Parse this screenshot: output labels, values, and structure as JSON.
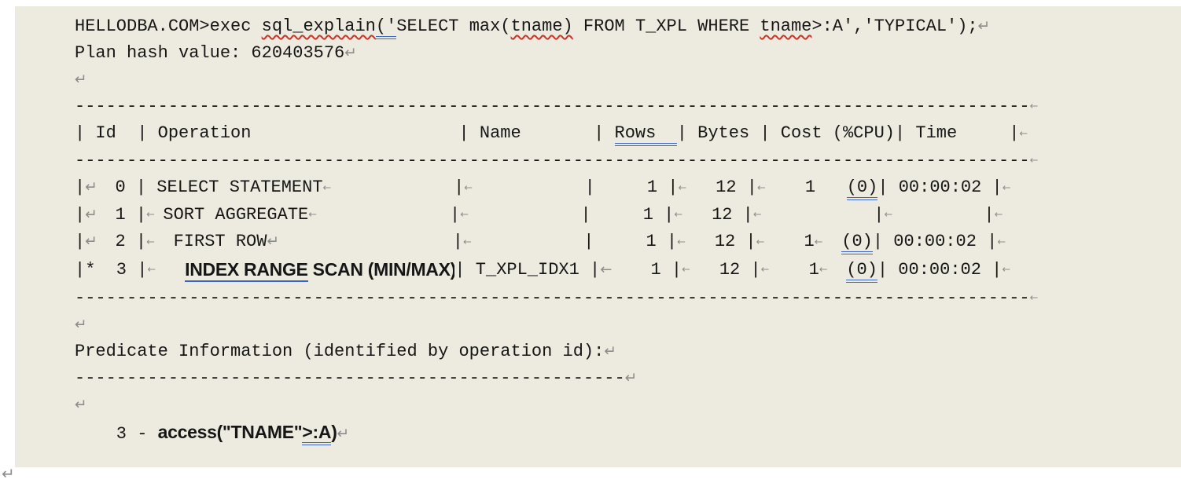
{
  "colors": {
    "page_background": "#FFFFFF",
    "document_background": "#EDEBE0",
    "text": "#161616",
    "formatting_mark": "#8C8C8C",
    "spellcheck_squiggle": "#CC3328",
    "grammar_underline": "#3A66C8"
  },
  "icons": {
    "return_mark": "↵",
    "tab_mark": "←"
  },
  "plan": {
    "command": "HELLODBA.COM>exec sql_explain('SELECT max(tname) FROM T_XPL WHERE tname>:A','TYPICAL');",
    "plan_hash_value": "620403576",
    "table": {
      "columns": [
        "Id",
        "Operation",
        "Name",
        "Rows",
        "Bytes",
        "Cost (%CPU)",
        "Time"
      ],
      "rows": [
        {
          "id": "0",
          "operation": "SELECT STATEMENT",
          "name": "",
          "rows": "1",
          "bytes": "12",
          "cost": "1  (0)",
          "time": "00:00:02"
        },
        {
          "id": "1",
          "operation": "SORT AGGREGATE",
          "name": "",
          "rows": "1",
          "bytes": "12",
          "cost": "",
          "time": ""
        },
        {
          "id": "2",
          "operation": "FIRST ROW",
          "name": "",
          "rows": "1",
          "bytes": "12",
          "cost": "1  (0)",
          "time": "00:00:02"
        },
        {
          "id": "3",
          "operation": "INDEX RANGE SCAN (MIN/MAX)",
          "name": "T_XPL_IDX1",
          "rows": "1",
          "bytes": "12",
          "cost": "1  (0)",
          "time": "00:00:02",
          "starred": true
        }
      ]
    },
    "predicate_heading": "Predicate Information (identified by operation id):",
    "predicate": "3 - access(\"TNAME\">:A)",
    "lines": [
      {
        "name": "command-line",
        "segs": [
          "HELLODBA.COM>exec ",
          {
            "t": "sql_explain",
            "k": "w"
          },
          {
            "t": "('",
            "k": "b2"
          },
          "SELECT max(",
          {
            "t": "tname)",
            "k": "w"
          },
          " FROM T_XPL WHERE ",
          {
            "t": "tname",
            "k": "w"
          },
          ">:A','TYPICAL');",
          {
            "k": "ret"
          }
        ]
      },
      {
        "name": "plan-hash-line",
        "segs": [
          "Plan hash value: 620403576",
          {
            "k": "ret"
          }
        ]
      },
      {
        "name": "blank-line",
        "segs": [
          {
            "k": "ret"
          }
        ]
      },
      {
        "name": "table-separator-top",
        "segs": [
          "--------------------------------------------------------------------------------------------",
          {
            "k": "tab"
          }
        ]
      },
      {
        "name": "table-header-row",
        "segs": [
          "| Id  | Operation                    | Name       | ",
          {
            "t": "Rows  ",
            "k": "b2"
          },
          "| Bytes | Cost (%CPU)| Time     |",
          {
            "k": "tab"
          }
        ]
      },
      {
        "name": "table-separator-header",
        "segs": [
          "--------------------------------------------------------------------------------------------",
          {
            "k": "tab"
          }
        ]
      },
      {
        "name": "plan-row-0",
        "segs": [
          "|",
          {
            "k": "ret"
          },
          "  0 | SELECT STATEMENT",
          {
            "k": "tab"
          },
          "            |",
          {
            "k": "tab"
          },
          "           |     1 |",
          {
            "k": "tab"
          },
          "   12 |",
          {
            "k": "tab"
          },
          "    1   ",
          {
            "t": "(0)",
            "k": "b2"
          },
          "| 00:00:02 |",
          {
            "k": "tab"
          }
        ]
      },
      {
        "name": "plan-row-1",
        "segs": [
          "|",
          {
            "k": "ret"
          },
          "  1 |",
          {
            "k": "tab"
          },
          " SORT AGGREGATE",
          {
            "k": "tab"
          },
          "             |",
          {
            "k": "tab"
          },
          "           |     1 |",
          {
            "k": "tab"
          },
          "   12 |",
          {
            "k": "tab"
          },
          "           |",
          {
            "k": "tab"
          },
          "         |",
          {
            "k": "tab"
          }
        ]
      },
      {
        "name": "plan-row-2",
        "segs": [
          "|",
          {
            "k": "ret"
          },
          "  2 |",
          {
            "k": "tab"
          },
          "  FIRST ROW",
          {
            "k": "ret"
          },
          "                 |",
          {
            "k": "tab"
          },
          "           |     1 |",
          {
            "k": "tab"
          },
          "   12 |",
          {
            "k": "tab"
          },
          "    1",
          {
            "k": "tab"
          },
          "  ",
          {
            "t": "(0)",
            "k": "b2"
          },
          "| 00:00:02 |",
          {
            "k": "tab"
          }
        ]
      },
      {
        "name": "plan-row-3",
        "segs": [
          "|*  3 |",
          {
            "k": "tab"
          },
          "   ",
          {
            "k": "blk",
            "children": [
              {
                "t": "INDEX RANGE",
                "k": "bd b1"
              },
              {
                "t": " SCAN (MIN/MAX)",
                "k": "bd"
              }
            ]
          },
          "| T_XPL_IDX1 |",
          {
            "k": "tabL"
          },
          "    1 |",
          {
            "k": "tab"
          },
          "   12 |",
          {
            "k": "tab"
          },
          "    1",
          {
            "k": "tab"
          },
          "  ",
          {
            "t": "(0)",
            "k": "b2"
          },
          "| 00:00:02 |",
          {
            "k": "tab"
          }
        ]
      },
      {
        "name": "table-separator-bottom",
        "segs": [
          "--------------------------------------------------------------------------------------------",
          {
            "k": "tab"
          }
        ]
      },
      {
        "name": "blank-line",
        "segs": [
          {
            "k": "ret"
          }
        ]
      },
      {
        "name": "predicate-heading-line",
        "segs": [
          "Predicate Information (identified by operation id):",
          {
            "k": "ret"
          }
        ]
      },
      {
        "name": "predicate-separator",
        "segs": [
          "-----------------------------------------------------",
          {
            "k": "ret"
          }
        ]
      },
      {
        "name": "blank-line",
        "segs": [
          {
            "k": "ret"
          }
        ]
      },
      {
        "name": "predicate-access-line",
        "segs": [
          "    3 - ",
          {
            "t": "access(\"TNAME\"",
            "k": "bd"
          },
          {
            "t": ">:A",
            "k": "bd b2"
          },
          {
            "t": ")",
            "k": "bd"
          },
          {
            "k": "ret"
          }
        ]
      }
    ]
  }
}
